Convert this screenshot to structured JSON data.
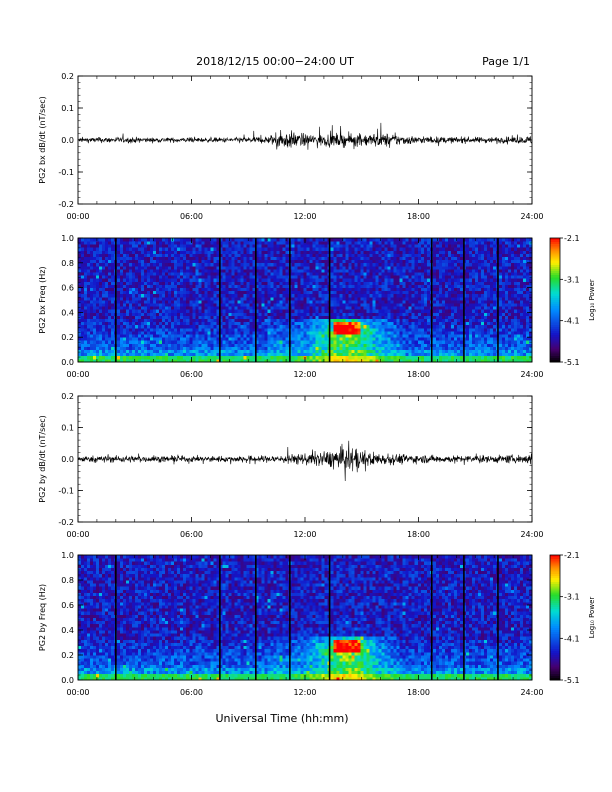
{
  "header": {
    "title": "2018/12/15  00:00−24:00 UT",
    "page": "Page 1/1"
  },
  "xaxis": {
    "label": "Universal Time (hh:mm)",
    "ticks": [
      "00:00",
      "06:00",
      "12:00",
      "18:00",
      "24:00"
    ],
    "range_hours": [
      0,
      24
    ]
  },
  "chart_data": [
    {
      "type": "line",
      "ylabel": "PG2 bx dB/dt (nT/sec)",
      "ylim": [
        -0.2,
        0.2
      ],
      "yticks": [
        "0.2",
        "0.1",
        "0.0",
        "-0.1",
        "-0.2"
      ],
      "series_envelope": {
        "hours": [
          0,
          2,
          4,
          6,
          8,
          10,
          10.5,
          11,
          11.5,
          12,
          12.5,
          13,
          14,
          15,
          16,
          17,
          18,
          20,
          22,
          23.5,
          24
        ],
        "amplitude": [
          0.008,
          0.01,
          0.008,
          0.008,
          0.008,
          0.012,
          0.025,
          0.03,
          0.028,
          0.02,
          0.02,
          0.022,
          0.022,
          0.02,
          0.025,
          0.018,
          0.012,
          0.01,
          0.01,
          0.012,
          0.015
        ]
      }
    },
    {
      "type": "heatmap",
      "ylabel": "PG2 bx Freq (Hz)",
      "ylim": [
        0.0,
        1.0
      ],
      "yticks": [
        "1.0",
        "0.8",
        "0.6",
        "0.4",
        "0.2",
        "0.0"
      ],
      "colorbar": {
        "label": "Log₁₀ Power",
        "range": [
          -5.1,
          -2.1
        ],
        "ticks": [
          "-2.1",
          "-3.1",
          "-4.1",
          "-5.1"
        ]
      },
      "data_gap_hours": [
        2.0,
        7.5,
        9.4,
        11.2,
        13.3,
        18.7,
        20.4,
        22.2
      ]
    },
    {
      "type": "line",
      "ylabel": "PG2 by dB/dt (nT/sec)",
      "ylim": [
        -0.2,
        0.2
      ],
      "yticks": [
        "0.2",
        "0.1",
        "0.0",
        "-0.1",
        "-0.2"
      ],
      "series_envelope": {
        "hours": [
          0,
          2,
          4,
          6,
          8,
          10,
          11,
          12,
          13,
          13.5,
          14,
          14.5,
          15,
          16,
          17,
          18,
          20,
          22,
          23.5,
          24
        ],
        "amplitude": [
          0.01,
          0.012,
          0.01,
          0.01,
          0.01,
          0.012,
          0.015,
          0.02,
          0.025,
          0.035,
          0.04,
          0.045,
          0.03,
          0.02,
          0.018,
          0.014,
          0.012,
          0.012,
          0.015,
          0.02
        ]
      }
    },
    {
      "type": "heatmap",
      "ylabel": "PG2 by Freq (Hz)",
      "ylim": [
        0.0,
        1.0
      ],
      "yticks": [
        "1.0",
        "0.8",
        "0.6",
        "0.4",
        "0.2",
        "0.0"
      ],
      "colorbar": {
        "label": "Log₁₀ Power",
        "range": [
          -5.1,
          -2.1
        ],
        "ticks": [
          "-2.1",
          "-3.1",
          "-4.1",
          "-5.1"
        ]
      },
      "data_gap_hours": [
        2.0,
        7.5,
        9.4,
        11.2,
        13.3,
        18.7,
        20.4,
        22.2
      ]
    }
  ]
}
